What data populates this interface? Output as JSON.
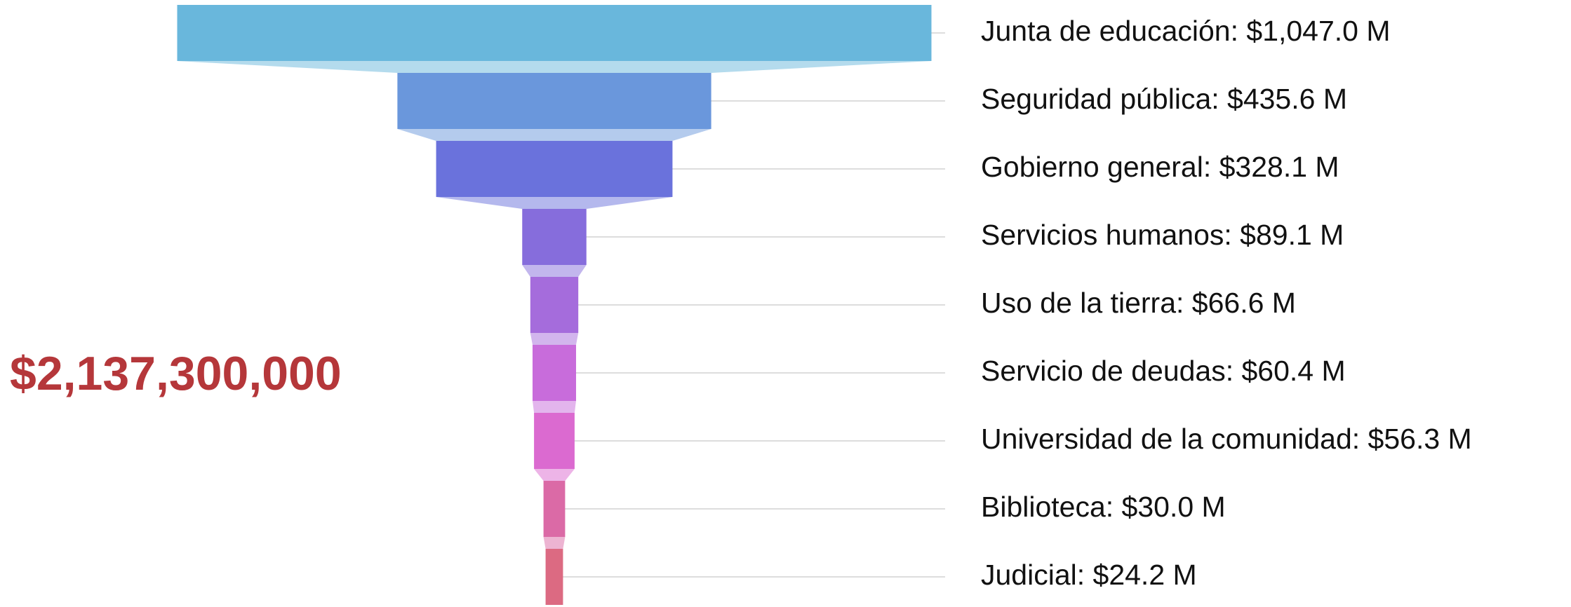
{
  "chart_data": {
    "type": "funnel",
    "annotation": "$2,137,300,000",
    "values": [
      1047.0,
      435.6,
      328.1,
      89.1,
      66.6,
      60.4,
      56.3,
      30.0,
      24.2
    ],
    "value_labels": [
      "Junta de educación: $1,047.0 M",
      "Seguridad pública: $435.6 M",
      "Gobierno general: $328.1 M",
      "Servicios humanos: $89.1 M",
      "Uso de la tierra: $66.6 M",
      "Servicio de deudas: $60.4 M",
      "Universidad de la comunidad: $56.3 M",
      "Biblioteca: $30.0 M",
      "Judicial: $24.2 M"
    ],
    "colors": [
      "#69b7dc",
      "#6a97dc",
      "#6a72dc",
      "#866ddc",
      "#a56cdc",
      "#c86cdb",
      "#db6ad0",
      "#db6aa6",
      "#dc6a82"
    ]
  }
}
